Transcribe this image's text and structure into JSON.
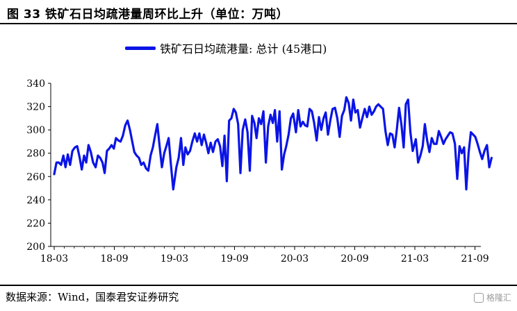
{
  "header": {
    "title": "图 33  铁矿石日均疏港量周环比上升（单位：万吨）"
  },
  "footer": {
    "source": "数据来源：Wind，国泰君安证券研究",
    "watermark": "格隆汇"
  },
  "chart_data": {
    "type": "line",
    "legend": {
      "placement": "top-center"
    },
    "grid": false,
    "ylim": [
      200,
      340
    ],
    "yticks": [
      200,
      220,
      240,
      260,
      280,
      300,
      320,
      340
    ],
    "xticks": [
      "18-03",
      "18-09",
      "19-03",
      "19-09",
      "20-03",
      "20-09",
      "21-03",
      "21-09"
    ],
    "xlim": [
      "2018-03",
      "2021-10"
    ],
    "colors": {
      "series": "#0a14e6"
    },
    "series": [
      {
        "name": "铁矿石日均疏港量: 总计 (45港口)",
        "points": [
          [
            "2018-03-01",
            262
          ],
          [
            "2018-03-08",
            272
          ],
          [
            "2018-03-15",
            272
          ],
          [
            "2018-03-22",
            270
          ],
          [
            "2018-03-29",
            278
          ],
          [
            "2018-04-05",
            268
          ],
          [
            "2018-04-12",
            279
          ],
          [
            "2018-04-19",
            270
          ],
          [
            "2018-04-26",
            282
          ],
          [
            "2018-05-03",
            285
          ],
          [
            "2018-05-10",
            286
          ],
          [
            "2018-05-17",
            277
          ],
          [
            "2018-05-24",
            266
          ],
          [
            "2018-05-31",
            278
          ],
          [
            "2018-06-07",
            272
          ],
          [
            "2018-06-14",
            287
          ],
          [
            "2018-06-21",
            281
          ],
          [
            "2018-06-28",
            272
          ],
          [
            "2018-07-05",
            268
          ],
          [
            "2018-07-12",
            278
          ],
          [
            "2018-07-19",
            276
          ],
          [
            "2018-07-26",
            272
          ],
          [
            "2018-08-02",
            263
          ],
          [
            "2018-08-09",
            282
          ],
          [
            "2018-08-16",
            284
          ],
          [
            "2018-08-23",
            287
          ],
          [
            "2018-08-30",
            284
          ],
          [
            "2018-09-06",
            293
          ],
          [
            "2018-09-13",
            291
          ],
          [
            "2018-09-20",
            290
          ],
          [
            "2018-09-27",
            295
          ],
          [
            "2018-10-04",
            304
          ],
          [
            "2018-10-11",
            308
          ],
          [
            "2018-10-18",
            300
          ],
          [
            "2018-10-25",
            290
          ],
          [
            "2018-11-01",
            281
          ],
          [
            "2018-11-08",
            278
          ],
          [
            "2018-11-15",
            276
          ],
          [
            "2018-11-22",
            270
          ],
          [
            "2018-11-29",
            272
          ],
          [
            "2018-12-06",
            267
          ],
          [
            "2018-12-13",
            265
          ],
          [
            "2018-12-20",
            278
          ],
          [
            "2018-12-27",
            285
          ],
          [
            "2019-01-03",
            295
          ],
          [
            "2019-01-10",
            305
          ],
          [
            "2019-01-17",
            286
          ],
          [
            "2019-01-24",
            268
          ],
          [
            "2019-01-31",
            280
          ],
          [
            "2019-02-07",
            286
          ],
          [
            "2019-02-14",
            293
          ],
          [
            "2019-02-21",
            270
          ],
          [
            "2019-02-28",
            249
          ],
          [
            "2019-03-07",
            268
          ],
          [
            "2019-03-14",
            276
          ],
          [
            "2019-03-21",
            293
          ],
          [
            "2019-03-28",
            270
          ],
          [
            "2019-04-04",
            285
          ],
          [
            "2019-04-11",
            279
          ],
          [
            "2019-04-18",
            282
          ],
          [
            "2019-04-25",
            290
          ],
          [
            "2019-05-02",
            297
          ],
          [
            "2019-05-09",
            290
          ],
          [
            "2019-05-16",
            297
          ],
          [
            "2019-05-23",
            287
          ],
          [
            "2019-05-30",
            296
          ],
          [
            "2019-06-06",
            289
          ],
          [
            "2019-06-13",
            280
          ],
          [
            "2019-06-20",
            289
          ],
          [
            "2019-06-27",
            281
          ],
          [
            "2019-07-04",
            290
          ],
          [
            "2019-07-11",
            292
          ],
          [
            "2019-07-18",
            286
          ],
          [
            "2019-07-25",
            269
          ],
          [
            "2019-08-01",
            295
          ],
          [
            "2019-08-08",
            256
          ],
          [
            "2019-08-15",
            308
          ],
          [
            "2019-08-22",
            310
          ],
          [
            "2019-08-29",
            318
          ],
          [
            "2019-09-05",
            315
          ],
          [
            "2019-09-12",
            305
          ],
          [
            "2019-09-19",
            263
          ],
          [
            "2019-09-26",
            300
          ],
          [
            "2019-10-03",
            309
          ],
          [
            "2019-10-10",
            298
          ],
          [
            "2019-10-17",
            265
          ],
          [
            "2019-10-24",
            312
          ],
          [
            "2019-10-31",
            306
          ],
          [
            "2019-11-07",
            293
          ],
          [
            "2019-11-14",
            310
          ],
          [
            "2019-11-21",
            305
          ],
          [
            "2019-11-28",
            316
          ],
          [
            "2019-12-05",
            272
          ],
          [
            "2019-12-12",
            303
          ],
          [
            "2019-12-19",
            313
          ],
          [
            "2019-12-26",
            306
          ],
          [
            "2020-01-02",
            317
          ],
          [
            "2020-01-09",
            290
          ],
          [
            "2020-01-16",
            316
          ],
          [
            "2020-01-23",
            266
          ],
          [
            "2020-01-30",
            279
          ],
          [
            "2020-02-06",
            286
          ],
          [
            "2020-02-13",
            296
          ],
          [
            "2020-02-20",
            310
          ],
          [
            "2020-02-27",
            314
          ],
          [
            "2020-03-05",
            298
          ],
          [
            "2020-03-12",
            317
          ],
          [
            "2020-03-19",
            303
          ],
          [
            "2020-03-26",
            307
          ],
          [
            "2020-04-02",
            304
          ],
          [
            "2020-04-09",
            303
          ],
          [
            "2020-04-16",
            318
          ],
          [
            "2020-04-23",
            316
          ],
          [
            "2020-04-30",
            306
          ],
          [
            "2020-05-07",
            291
          ],
          [
            "2020-05-14",
            311
          ],
          [
            "2020-05-21",
            300
          ],
          [
            "2020-05-28",
            310
          ],
          [
            "2020-06-04",
            315
          ],
          [
            "2020-06-11",
            296
          ],
          [
            "2020-06-18",
            308
          ],
          [
            "2020-06-25",
            318
          ],
          [
            "2020-07-02",
            319
          ],
          [
            "2020-07-09",
            310
          ],
          [
            "2020-07-16",
            294
          ],
          [
            "2020-07-23",
            312
          ],
          [
            "2020-07-30",
            317
          ],
          [
            "2020-08-06",
            328
          ],
          [
            "2020-08-13",
            323
          ],
          [
            "2020-08-20",
            308
          ],
          [
            "2020-08-27",
            326
          ],
          [
            "2020-09-03",
            315
          ],
          [
            "2020-09-10",
            317
          ],
          [
            "2020-09-17",
            302
          ],
          [
            "2020-09-24",
            310
          ],
          [
            "2020-10-01",
            318
          ],
          [
            "2020-10-08",
            311
          ],
          [
            "2020-10-15",
            320
          ],
          [
            "2020-10-22",
            313
          ],
          [
            "2020-10-29",
            316
          ],
          [
            "2020-11-05",
            320
          ],
          [
            "2020-11-12",
            322
          ],
          [
            "2020-11-19",
            320
          ],
          [
            "2020-11-26",
            318
          ],
          [
            "2020-12-03",
            299
          ],
          [
            "2020-12-10",
            287
          ],
          [
            "2020-12-17",
            297
          ],
          [
            "2020-12-24",
            296
          ],
          [
            "2020-12-31",
            285
          ],
          [
            "2021-01-07",
            300
          ],
          [
            "2021-01-14",
            319
          ],
          [
            "2021-01-21",
            305
          ],
          [
            "2021-01-28",
            285
          ],
          [
            "2021-02-04",
            322
          ],
          [
            "2021-02-11",
            326
          ],
          [
            "2021-02-18",
            298
          ],
          [
            "2021-02-25",
            282
          ],
          [
            "2021-03-04",
            292
          ],
          [
            "2021-03-11",
            272
          ],
          [
            "2021-03-18",
            278
          ],
          [
            "2021-03-25",
            286
          ],
          [
            "2021-04-01",
            305
          ],
          [
            "2021-04-08",
            291
          ],
          [
            "2021-04-15",
            281
          ],
          [
            "2021-04-22",
            293
          ],
          [
            "2021-04-29",
            288
          ],
          [
            "2021-05-06",
            288
          ],
          [
            "2021-05-13",
            299
          ],
          [
            "2021-05-20",
            294
          ],
          [
            "2021-05-27",
            288
          ],
          [
            "2021-06-03",
            292
          ],
          [
            "2021-06-10",
            295
          ],
          [
            "2021-06-17",
            298
          ],
          [
            "2021-06-24",
            297
          ],
          [
            "2021-07-01",
            288
          ],
          [
            "2021-07-08",
            258
          ],
          [
            "2021-07-15",
            286
          ],
          [
            "2021-07-22",
            280
          ],
          [
            "2021-07-29",
            285
          ],
          [
            "2021-08-05",
            249
          ],
          [
            "2021-08-12",
            280
          ],
          [
            "2021-08-19",
            298
          ],
          [
            "2021-08-26",
            296
          ],
          [
            "2021-09-02",
            294
          ],
          [
            "2021-09-09",
            288
          ],
          [
            "2021-09-16",
            281
          ],
          [
            "2021-09-23",
            275
          ],
          [
            "2021-09-30",
            282
          ],
          [
            "2021-10-07",
            287
          ],
          [
            "2021-10-14",
            268
          ],
          [
            "2021-10-21",
            276
          ]
        ]
      }
    ]
  }
}
